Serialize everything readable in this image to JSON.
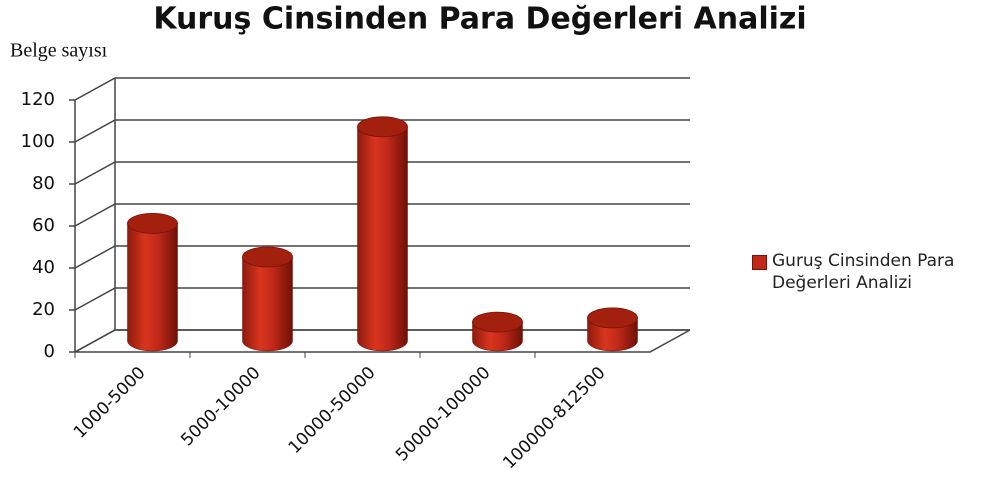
{
  "chart_data": {
    "type": "bar",
    "title": "Kuruş Cinsinden Para Değerleri Analizi",
    "y_label": "Belge sayısı",
    "categories": [
      "1000-5000",
      "5000-10000",
      "10000-50000",
      "50000-100000",
      "100000-812500"
    ],
    "series": [
      {
        "name": "Guruş Cinsinden Para Değerleri Analizi",
        "color": "#c0281a",
        "values": [
          56,
          40,
          102,
          9,
          11
        ]
      }
    ],
    "ylim": [
      0,
      120
    ],
    "yticks": [
      0,
      20,
      40,
      60,
      80,
      100,
      120
    ],
    "grid": true,
    "legend": "right"
  }
}
